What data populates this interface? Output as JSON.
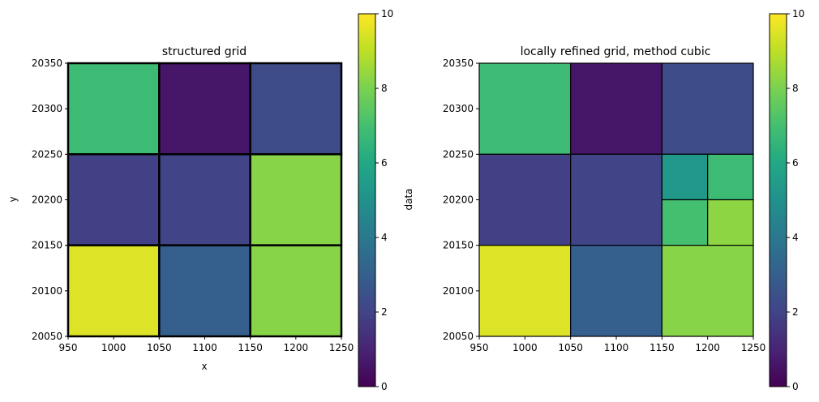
{
  "chart_data": [
    {
      "type": "heatmap",
      "title": "structured grid",
      "xlabel": "x",
      "ylabel": "y",
      "xlim": [
        950,
        1250
      ],
      "ylim": [
        20050,
        20350
      ],
      "x_ticks": [
        950,
        1000,
        1050,
        1100,
        1150,
        1200,
        1250
      ],
      "y_ticks": [
        20050,
        20100,
        20150,
        20200,
        20250,
        20300,
        20350
      ],
      "cells": [
        {
          "x0": 950,
          "x1": 1050,
          "y0": 20250,
          "y1": 20350,
          "value": 6.8
        },
        {
          "x0": 1050,
          "x1": 1150,
          "y0": 20250,
          "y1": 20350,
          "value": 0.6
        },
        {
          "x0": 1150,
          "x1": 1250,
          "y0": 20250,
          "y1": 20350,
          "value": 2.3
        },
        {
          "x0": 950,
          "x1": 1050,
          "y0": 20150,
          "y1": 20250,
          "value": 1.9
        },
        {
          "x0": 1050,
          "x1": 1150,
          "y0": 20150,
          "y1": 20250,
          "value": 2.0
        },
        {
          "x0": 1150,
          "x1": 1250,
          "y0": 20150,
          "y1": 20250,
          "value": 8.2
        },
        {
          "x0": 950,
          "x1": 1050,
          "y0": 20050,
          "y1": 20150,
          "value": 9.5
        },
        {
          "x0": 1050,
          "x1": 1150,
          "y0": 20050,
          "y1": 20150,
          "value": 3.0
        },
        {
          "x0": 1150,
          "x1": 1250,
          "y0": 20050,
          "y1": 20150,
          "value": 8.2
        }
      ],
      "colorbar": {
        "label": "data",
        "min": 0,
        "max": 10,
        "ticks": [
          0,
          2,
          4,
          6,
          8,
          10
        ],
        "colormap": "viridis"
      }
    },
    {
      "type": "heatmap",
      "title": "locally refined grid, method cubic",
      "xlabel": "",
      "ylabel": "",
      "xlim": [
        950,
        1250
      ],
      "ylim": [
        20050,
        20350
      ],
      "x_ticks": [
        950,
        1000,
        1050,
        1100,
        1150,
        1200,
        1250
      ],
      "y_ticks": [
        20050,
        20100,
        20150,
        20200,
        20250,
        20300,
        20350
      ],
      "cells": [
        {
          "x0": 950,
          "x1": 1050,
          "y0": 20250,
          "y1": 20350,
          "value": 6.8
        },
        {
          "x0": 1050,
          "x1": 1150,
          "y0": 20250,
          "y1": 20350,
          "value": 0.6
        },
        {
          "x0": 1150,
          "x1": 1250,
          "y0": 20250,
          "y1": 20350,
          "value": 2.3
        },
        {
          "x0": 950,
          "x1": 1050,
          "y0": 20150,
          "y1": 20250,
          "value": 1.9
        },
        {
          "x0": 1050,
          "x1": 1150,
          "y0": 20150,
          "y1": 20250,
          "value": 2.0
        },
        {
          "x0": 1150,
          "x1": 1200,
          "y0": 20200,
          "y1": 20250,
          "value": 5.3
        },
        {
          "x0": 1200,
          "x1": 1250,
          "y0": 20200,
          "y1": 20250,
          "value": 6.8
        },
        {
          "x0": 1150,
          "x1": 1200,
          "y0": 20150,
          "y1": 20200,
          "value": 7.0
        },
        {
          "x0": 1200,
          "x1": 1250,
          "y0": 20150,
          "y1": 20200,
          "value": 8.3
        },
        {
          "x0": 950,
          "x1": 1050,
          "y0": 20050,
          "y1": 20150,
          "value": 9.5
        },
        {
          "x0": 1050,
          "x1": 1150,
          "y0": 20050,
          "y1": 20150,
          "value": 3.0
        },
        {
          "x0": 1150,
          "x1": 1250,
          "y0": 20050,
          "y1": 20150,
          "value": 8.2
        }
      ],
      "colorbar": {
        "label": "",
        "min": 0,
        "max": 10,
        "ticks": [
          0,
          2,
          4,
          6,
          8,
          10
        ],
        "colormap": "viridis"
      }
    }
  ]
}
